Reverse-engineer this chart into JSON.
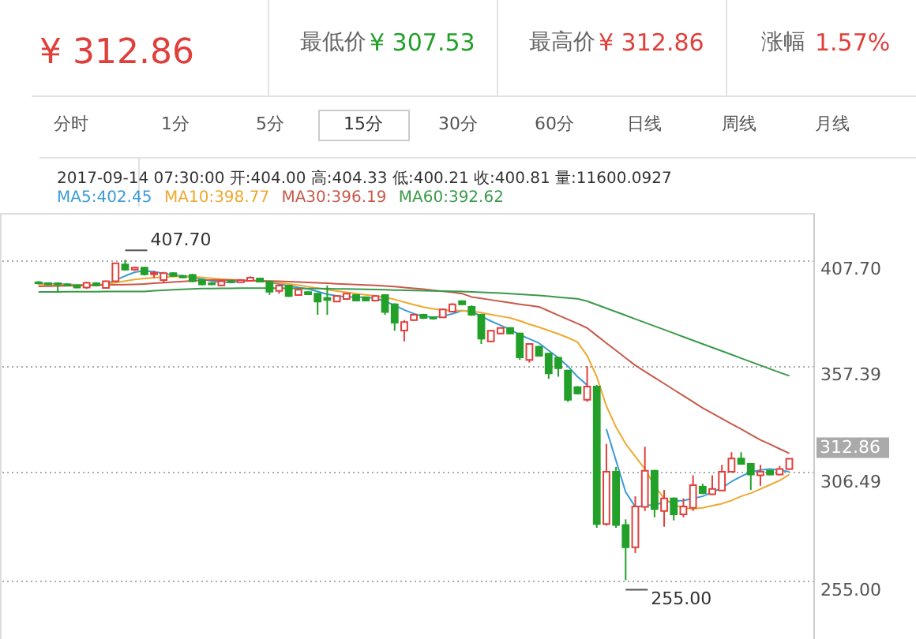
{
  "chart_data": {
    "type": "candlestick",
    "categories": [
      null,
      null,
      null,
      null,
      null,
      null,
      null,
      null,
      null,
      null,
      null,
      null,
      null,
      null,
      null,
      null,
      null,
      null,
      null,
      null,
      null,
      null,
      null,
      null,
      null,
      null,
      null,
      null,
      null,
      null,
      null,
      null,
      null,
      null,
      null,
      null,
      null,
      null,
      null,
      null,
      null,
      null,
      null,
      null,
      null,
      null,
      null,
      null,
      null,
      null,
      null,
      null,
      null,
      null,
      null,
      null,
      null,
      null,
      null,
      null,
      null,
      null,
      null,
      null,
      null,
      null,
      null,
      null,
      null,
      null,
      null,
      null,
      null,
      null,
      null,
      null,
      null,
      null,
      null
    ],
    "ohlc": [
      [
        397,
        397.5,
        396,
        396.5
      ],
      [
        396.5,
        397,
        395.8,
        396
      ],
      [
        396.5,
        397,
        392,
        396
      ],
      [
        396,
        396.5,
        395.2,
        395.5
      ],
      [
        395.5,
        396,
        394.2,
        394.5
      ],
      [
        394.5,
        397.2,
        393.8,
        396.7
      ],
      [
        396.5,
        397,
        395,
        395.5
      ],
      [
        394.3,
        397.8,
        394,
        397.5
      ],
      [
        397.5,
        406.3,
        397,
        406
      ],
      [
        405.5,
        407.7,
        402.5,
        403
      ],
      [
        403,
        404.5,
        402.5,
        404
      ],
      [
        404,
        404.33,
        400.21,
        400.81
      ],
      [
        400.8,
        402.5,
        399,
        401.5
      ],
      [
        398,
        402,
        396.5,
        401.3
      ],
      [
        401.3,
        401.8,
        399.5,
        400
      ],
      [
        400,
        400.5,
        399,
        399.3
      ],
      [
        400.5,
        401,
        397,
        397.5
      ],
      [
        398,
        398.5,
        395.5,
        396
      ],
      [
        396.5,
        397,
        395.6,
        396
      ],
      [
        395.5,
        398,
        395.2,
        397.5
      ],
      [
        397.5,
        398,
        396.5,
        397
      ],
      [
        397,
        398.5,
        396.8,
        398
      ],
      [
        397.7,
        399.8,
        397.5,
        399.2
      ],
      [
        398.8,
        399.2,
        397,
        397.3
      ],
      [
        397.3,
        397.8,
        391,
        392.5
      ],
      [
        392.9,
        396,
        391.5,
        395.4
      ],
      [
        395.4,
        395.8,
        390,
        390.4
      ],
      [
        390.9,
        393.8,
        390.5,
        393.4
      ],
      [
        392.3,
        392.6,
        391,
        391.3
      ],
      [
        391.6,
        392,
        381.5,
        387.8
      ],
      [
        389.5,
        395.4,
        381.5,
        388.6
      ],
      [
        387.8,
        390.8,
        387.5,
        390.4
      ],
      [
        389,
        392,
        388.6,
        391.6
      ],
      [
        390.9,
        391.2,
        388,
        388.3
      ],
      [
        389.9,
        390.2,
        388,
        388.3
      ],
      [
        388.3,
        390.8,
        388,
        390.4
      ],
      [
        390.9,
        391.2,
        381.5,
        382.8
      ],
      [
        386.5,
        387,
        373.9,
        377.7
      ],
      [
        374,
        379,
        368.8,
        378
      ],
      [
        379,
        382,
        378.5,
        381.5
      ],
      [
        381.5,
        382,
        379.5,
        380
      ],
      [
        380.3,
        380.6,
        379.2,
        379.7
      ],
      [
        380.3,
        384.5,
        380,
        384
      ],
      [
        383,
        387,
        382.8,
        386.5
      ],
      [
        388,
        388.4,
        386,
        386.5
      ],
      [
        385.3,
        386,
        381,
        381.5
      ],
      [
        381.5,
        382,
        367.6,
        370.1
      ],
      [
        368.8,
        374.3,
        368.5,
        373.9
      ],
      [
        372.6,
        375.6,
        372.3,
        375.2
      ],
      [
        375.2,
        375.6,
        372.3,
        372.6
      ],
      [
        372.6,
        373,
        360,
        361.2
      ],
      [
        360,
        368,
        358.7,
        367.6
      ],
      [
        366.3,
        366.8,
        361.6,
        362
      ],
      [
        363,
        363.4,
        351,
        353.6
      ],
      [
        361,
        361.5,
        352,
        356
      ],
      [
        354.9,
        355.3,
        340,
        341
      ],
      [
        347,
        347.5,
        343.5,
        344
      ],
      [
        341,
        357,
        340,
        347.3
      ],
      [
        347.3,
        348,
        280,
        281.8
      ],
      [
        281.8,
        320,
        281,
        306.7
      ],
      [
        306.7,
        309,
        280,
        281.3
      ],
      [
        281.3,
        284,
        255,
        270.7
      ],
      [
        270.7,
        295,
        268,
        290.2
      ],
      [
        290,
        318.6,
        288,
        307.2
      ],
      [
        307.2,
        307.6,
        285,
        288.9
      ],
      [
        288,
        298,
        280.5,
        294
      ],
      [
        294,
        294.4,
        283.5,
        286.4
      ],
      [
        286.4,
        294,
        285,
        290.2
      ],
      [
        289.5,
        305,
        288,
        300.3
      ],
      [
        299.6,
        301,
        296,
        296.5
      ],
      [
        296,
        305,
        295.6,
        298.5
      ],
      [
        297.8,
        310,
        297.4,
        306.7
      ],
      [
        306.7,
        316,
        306.3,
        313
      ],
      [
        313,
        316,
        310.1,
        310.5
      ],
      [
        310.5,
        310.9,
        298,
        305.4
      ],
      [
        305,
        310,
        300,
        306.7
      ],
      [
        307.2,
        307.6,
        305,
        305.4
      ],
      [
        305.4,
        309.5,
        305,
        308
      ],
      [
        308,
        312.86,
        307.53,
        312.86
      ]
    ],
    "colors": [
      "#22a02a",
      "#22a02a",
      "#22a02a",
      "#22a02a",
      "#22a02a",
      "#e0403c",
      "#22a02a",
      "#e0403c",
      "#e0403c",
      "#22a02a",
      "#e0403c",
      "#22a02a",
      "#e0403c",
      "#e0403c",
      "#22a02a",
      "#22a02a",
      "#22a02a",
      "#22a02a",
      "#22a02a",
      "#e0403c",
      "#22a02a",
      "#e0403c",
      "#e0403c",
      "#22a02a",
      "#22a02a",
      "#e0403c",
      "#22a02a",
      "#e0403c",
      "#22a02a",
      "#22a02a",
      "#22a02a",
      "#e0403c",
      "#e0403c",
      "#22a02a",
      "#22a02a",
      "#e0403c",
      "#22a02a",
      "#22a02a",
      "#e0403c",
      "#e0403c",
      "#22a02a",
      "#22a02a",
      "#e0403c",
      "#e0403c",
      "#22a02a",
      "#22a02a",
      "#22a02a",
      "#e0403c",
      "#e0403c",
      "#22a02a",
      "#22a02a",
      "#e0403c",
      "#22a02a",
      "#22a02a",
      "#22a02a",
      "#22a02a",
      "#22a02a",
      "#e0403c",
      "#22a02a",
      "#e0403c",
      "#22a02a",
      "#22a02a",
      "#e0403c",
      "#e0403c",
      "#22a02a",
      "#e0403c",
      "#22a02a",
      "#e0403c",
      "#e0403c",
      "#22a02a",
      "#e0403c",
      "#e0403c",
      "#e0403c",
      "#22a02a",
      "#22a02a",
      "#e0403c",
      "#22a02a",
      "#e0403c",
      "#e0403c"
    ],
    "series": [
      {
        "name": "MA5:402.45",
        "type": "line",
        "color": "#3c9bd6",
        "values": [
          396.5,
          396.3,
          396.2,
          396.0,
          395.8,
          395.8,
          395.7,
          396.0,
          398.0,
          400.0,
          401.8,
          402.5,
          402.0,
          401.2,
          400.4,
          400.0,
          399.4,
          398.5,
          397.5,
          397.0,
          397.0,
          397.3,
          397.8,
          397.8,
          397.0,
          396.2,
          395.3,
          394.5,
          393.8,
          392.6,
          391.3,
          390.5,
          390.0,
          390.0,
          389.8,
          389.4,
          388.0,
          386.0,
          383.8,
          382.0,
          380.8,
          380.3,
          380.8,
          382.0,
          383.5,
          383.0,
          380.8,
          378.5,
          376.5,
          374.5,
          372.0,
          370.0,
          368.0,
          364.5,
          361.0,
          357.0,
          352.0,
          348.0,
          null,
          327,
          312,
          297,
          290,
          290.5,
          291,
          292,
          292.7,
          293,
          294,
          295,
          297,
          299,
          302,
          304.5,
          306.7,
          307.5,
          308,
          307.5,
          306.7
        ]
      },
      {
        "name": "MA10:398.77",
        "type": "line",
        "color": "#f0a830",
        "values": [
          396.0,
          396.0,
          395.9,
          395.8,
          395.7,
          395.7,
          395.8,
          396.0,
          396.8,
          397.6,
          398.3,
          398.8,
          399.2,
          399.5,
          399.7,
          399.8,
          399.6,
          399.3,
          398.9,
          398.5,
          398.2,
          398.0,
          397.8,
          397.6,
          397.2,
          396.7,
          396.2,
          395.6,
          394.9,
          394.2,
          393.5,
          392.8,
          392.2,
          391.6,
          391.0,
          390.5,
          389.8,
          388.8,
          387.5,
          386.3,
          385.2,
          384.3,
          383.8,
          383.6,
          383.5,
          383.2,
          382.5,
          381.6,
          380.8,
          380.0,
          378.6,
          377.0,
          375.6,
          374.0,
          372.4,
          370.6,
          368.5,
          362,
          352,
          338,
          328,
          320,
          314,
          308,
          300,
          294,
          291,
          289.5,
          289,
          289.5,
          290.5,
          291.5,
          293,
          295,
          296.5,
          298.5,
          300.5,
          302.5,
          305.4
        ]
      },
      {
        "name": "MA30:396.19",
        "type": "line",
        "color": "#c8594a",
        "values": [
          395.0,
          395.1,
          395.2,
          395.3,
          395.4,
          395.5,
          395.6,
          395.7,
          395.8,
          395.9,
          396.0,
          396.2,
          396.5,
          396.8,
          397.1,
          397.4,
          397.7,
          398.0,
          398.0,
          398.0,
          398.0,
          397.9,
          397.8,
          397.7,
          397.6,
          397.5,
          397.3,
          397.1,
          396.9,
          396.7,
          396.5,
          396.3,
          396.1,
          395.9,
          395.7,
          395.5,
          395.2,
          394.9,
          394.5,
          394.1,
          393.7,
          393.2,
          392.7,
          392.2,
          391.6,
          390.0,
          389.3,
          388.6,
          387.9,
          387.2,
          386.5,
          385.9,
          385.3,
          383.3,
          381.3,
          379.3,
          377.3,
          375.2,
          371.6,
          368.0,
          364.5,
          360.9,
          357.4,
          354.5,
          351.6,
          348.7,
          345.8,
          342.9,
          340.0,
          337.1,
          334.6,
          332.0,
          329.5,
          327.0,
          324.4,
          321.9,
          319.8,
          317.6,
          315.5
        ]
      },
      {
        "name": "MA60:392.62",
        "type": "line",
        "color": "#3a9a4a",
        "values": [
          392.4,
          392.4,
          392.4,
          392.5,
          392.5,
          392.5,
          392.5,
          392.6,
          392.6,
          392.6,
          392.6,
          392.6,
          393.0,
          393.2,
          393.4,
          393.6,
          393.8,
          394.0,
          394.0,
          394.1,
          394.1,
          394.2,
          394.2,
          394.2,
          394.2,
          394.2,
          394.1,
          394.1,
          394.0,
          394.0,
          393.9,
          393.8,
          393.8,
          393.7,
          393.6,
          393.5,
          393.4,
          393.3,
          393.2,
          393.1,
          393.0,
          392.9,
          392.8,
          392.7,
          392.6,
          392.4,
          392.2,
          392.0,
          391.8,
          391.6,
          391.3,
          391.0,
          390.7,
          390.3,
          389.9,
          389.5,
          389.1,
          388.0,
          386.3,
          384.6,
          382.9,
          381.2,
          379.5,
          377.8,
          376.1,
          374.4,
          372.7,
          371.0,
          369.3,
          367.6,
          365.9,
          364.2,
          362.5,
          360.8,
          359.1,
          357.4,
          355.7,
          354.0,
          352.4
        ]
      }
    ],
    "ylim": [
      227,
      430
    ],
    "yticks": [
      {
        "value": 255,
        "label": "255.00"
      },
      {
        "value": 306.49,
        "label": "306.49"
      },
      {
        "value": 357.39,
        "label": "357.39"
      },
      {
        "value": 407.7,
        "label": "407.70"
      }
    ],
    "grid": "y",
    "legend": "top left",
    "tick_labels": "y",
    "annotations": [
      "¥ 312.86",
      "最低价",
      "¥ 307.53",
      "最高价",
      "¥ 312.86",
      "涨幅",
      "1.57%",
      "分时",
      "1分",
      "5分",
      "15分",
      "30分",
      "60分",
      "日线",
      "周线",
      "月线",
      "2017-09-14 07:30:00  开:404.00 高:404.33 低:400.21 收:400.81 量:11600.0927",
      "407.70",
      "255.00",
      "312.86"
    ]
  }
}
